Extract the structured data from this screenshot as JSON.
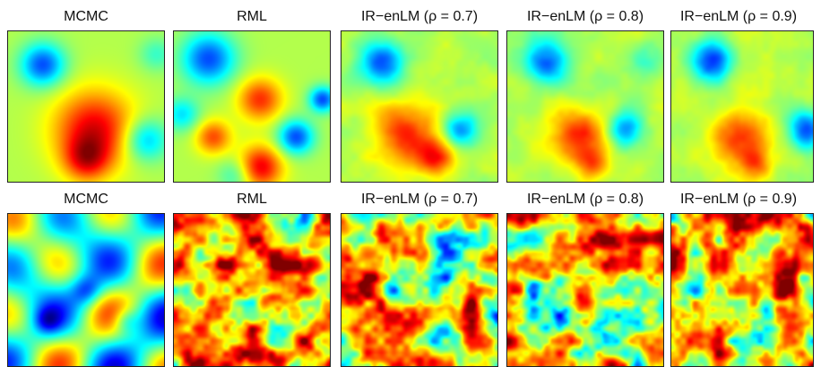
{
  "rows": [
    {
      "row_id": "mean",
      "panels": [
        {
          "title": "MCMC"
        },
        {
          "title": "RML"
        },
        {
          "title": "IR−enLM (ρ = 0.7)"
        },
        {
          "title": "IR−enLM (ρ = 0.8)"
        },
        {
          "title": "IR−enLM (ρ = 0.9)"
        }
      ]
    },
    {
      "row_id": "variance",
      "panels": [
        {
          "title": "MCMC"
        },
        {
          "title": "RML"
        },
        {
          "title": "IR−enLM (ρ = 0.7)"
        },
        {
          "title": "IR−enLM (ρ = 0.8)"
        },
        {
          "title": "IR−enLM (ρ = 0.9)"
        }
      ]
    }
  ],
  "colormap": "jet"
}
